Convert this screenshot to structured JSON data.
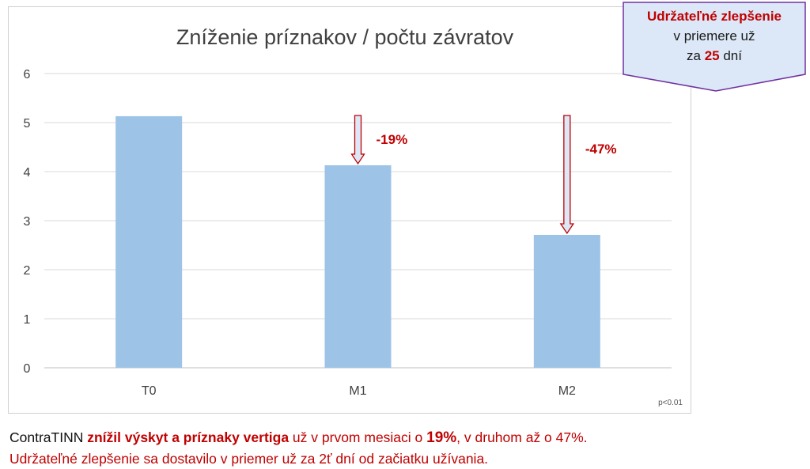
{
  "colors": {
    "bar": "#9dc3e6",
    "accent": "#c00000",
    "grid": "#d9d9d9",
    "callout_bg": "#dce8f7",
    "callout_border": "#7030a0"
  },
  "chart_data": {
    "type": "bar",
    "title": "Zníženie príznakov / počtu závratov",
    "categories": [
      "T0",
      "M1",
      "M2"
    ],
    "values": [
      5.13,
      4.13,
      2.71
    ],
    "ylim": [
      0,
      6
    ],
    "yticks": [
      "0",
      "1",
      "2",
      "3",
      "4",
      "5",
      "6"
    ],
    "grid": true,
    "annotations": [
      {
        "category": "M1",
        "text": "-19%"
      },
      {
        "category": "M2",
        "text": "-47%"
      }
    ],
    "footnote": "p<0.01"
  },
  "callout": {
    "line1": "Udržateľné zlepšenie",
    "line2": "v priemere už",
    "line3_prefix": "za ",
    "line3_number": "25",
    "line3_suffix": " dní"
  },
  "caption": {
    "brand": "ContraTINN ",
    "highlight": "znížil výskyt a príznaky vertiga",
    "mid": " už v prvom mesiaci o ",
    "pct": "19%",
    "end": ", v druhom až o 47%.",
    "line2": "Udržateľné zlepšenie sa dostavilo v priemer už za 2ť dní od začiatku užívania."
  }
}
